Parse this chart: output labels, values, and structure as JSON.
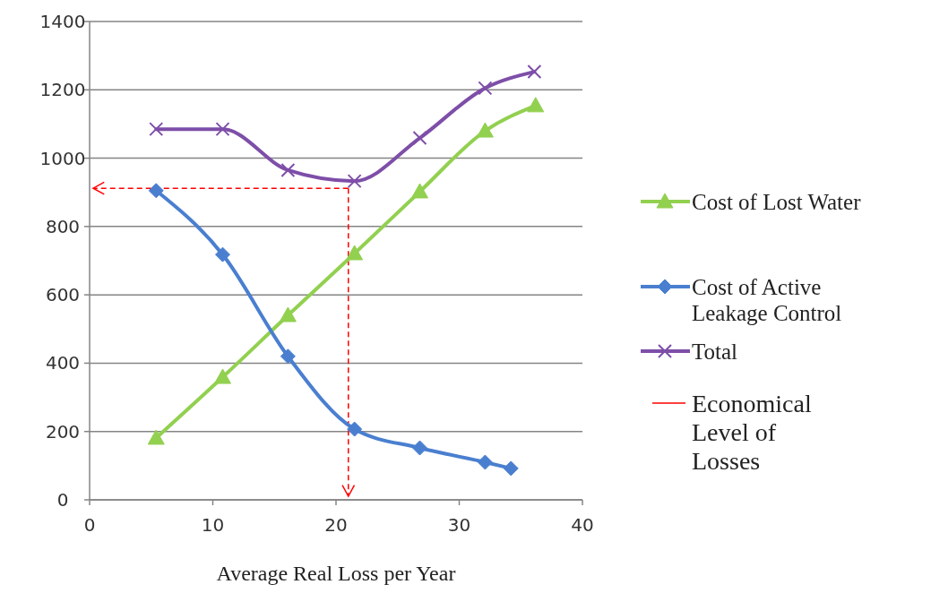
{
  "chart_data": {
    "type": "line",
    "xlabel": "Average Real Loss per Year",
    "xlim": [
      0,
      40
    ],
    "xticks": [
      0,
      10,
      20,
      30,
      40
    ],
    "ylim": [
      0,
      1400
    ],
    "yticks": [
      0,
      200,
      400,
      600,
      800,
      1000,
      1200,
      1400
    ],
    "grid": "y",
    "legend": "right",
    "series": [
      {
        "name": "Cost of Lost Water",
        "color": "#92d050",
        "marker": "triangle",
        "x": [
          5.4,
          10.8,
          16.1,
          21.5,
          26.8,
          32.1,
          36.2
        ],
        "values": [
          181,
          359,
          540,
          721,
          902,
          1080,
          1154
        ]
      },
      {
        "name": "Cost of Active Leakage Control",
        "color": "#4a7fd0",
        "marker": "diamond",
        "x": [
          5.4,
          10.8,
          16.1,
          21.5,
          26.8,
          32.1,
          34.2
        ],
        "values": [
          905,
          718,
          420,
          207,
          152,
          110,
          92
        ]
      },
      {
        "name": "Total",
        "color": "#7e4ea8",
        "marker": "cross",
        "x": [
          5.4,
          10.8,
          16.1,
          21.5,
          26.8,
          32.1,
          36.1
        ],
        "values": [
          1085,
          1085,
          965,
          933,
          1059,
          1205,
          1253
        ]
      }
    ],
    "ref_lines": [
      {
        "axis": "y",
        "value": 912,
        "label": "Economical Level of Losses",
        "color": "#ff0000",
        "line_style": "dashed"
      },
      {
        "axis": "x",
        "value": 21,
        "color": "#ff0000",
        "line_style": "dashed"
      }
    ]
  }
}
